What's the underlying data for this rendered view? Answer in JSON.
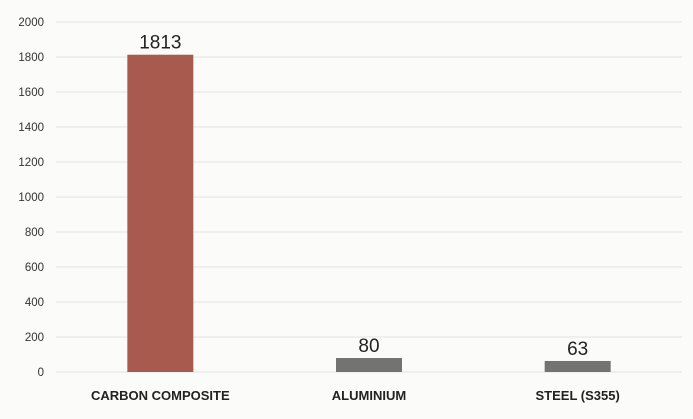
{
  "chart_data": {
    "type": "bar",
    "title": "",
    "xlabel": "",
    "ylabel": "",
    "categories": [
      "CARBON COMPOSITE",
      "ALUMINIUM",
      "STEEL (S355)"
    ],
    "values": [
      1813,
      80,
      63
    ],
    "data_labels": [
      "1813",
      "80",
      "63"
    ],
    "bar_colors": [
      "#a85a4e",
      "#737373",
      "#737373"
    ],
    "ylim": [
      0,
      2000
    ],
    "yticks": [
      0,
      200,
      400,
      600,
      800,
      1000,
      1200,
      1400,
      1600,
      1800,
      2000
    ],
    "ytick_labels": [
      "0",
      "200",
      "400",
      "600",
      "800",
      "1000",
      "1200",
      "1400",
      "1600",
      "1800",
      "2000"
    ],
    "grid": true,
    "legend": "none"
  }
}
